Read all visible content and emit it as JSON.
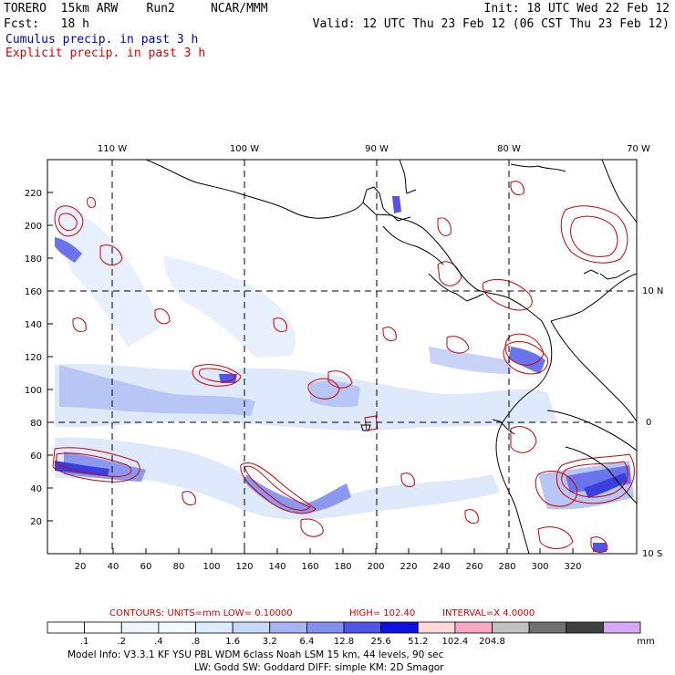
{
  "header": {
    "model": "TORERO  15km ARW    Run2     NCAR/MMM",
    "init": "Init: 18 UTC Wed 22 Feb 12",
    "fcst": "Fcst:   18 h",
    "valid": "Valid: 12 UTC Thu 23 Feb 12 (06 CST Thu 23 Feb 12)",
    "line1": "Cumulus precip. in past 3 h",
    "line2": "Explicit precip. in past 3 h"
  },
  "colors": {
    "cumulus_text": "#0000cc",
    "explicit_text": "#dd0000",
    "contour": "#cc0000"
  },
  "axes": {
    "top_lon_labels": [
      "110 W",
      "100 W",
      "90 W",
      "80 W",
      "70 W"
    ],
    "right_lat_labels": [
      "10 N",
      "0",
      "10 S"
    ],
    "y_ticks": [
      "20",
      "40",
      "60",
      "80",
      "100",
      "120",
      "140",
      "160",
      "180",
      "200",
      "220"
    ],
    "x_ticks": [
      "20",
      "40",
      "60",
      "80",
      "100",
      "120",
      "140",
      "160",
      "180",
      "200",
      "220",
      "240",
      "260",
      "280",
      "300",
      "320"
    ]
  },
  "contour_info": {
    "label": "CONTOURS:  UNITS=mm  LOW= 0.10000",
    "high": "HIGH=  102.40",
    "interval": "INTERVAL=X  4.0000"
  },
  "colorbar": {
    "colors": [
      "#ffffff",
      "#ffffff",
      "#eef6ff",
      "#eefcfc",
      "#dcecff",
      "#c8d8f8",
      "#a8b4f4",
      "#8490f0",
      "#5055e8",
      "#1010e0",
      "#fcd8d8",
      "#f8a8c4",
      "#c0c0c0",
      "#707070",
      "#404040",
      "#d8a8f8"
    ],
    "labels": [
      ".1",
      ".2",
      ".4",
      ".8",
      "1.6",
      "3.2",
      "6.4",
      "12.8",
      "25.6",
      "51.2",
      "102.4",
      "204.8"
    ],
    "units": "mm"
  },
  "footer": {
    "line1": "Model Info: V3.3.1   KF     YSU PBL  WDM 6class  Noah LSM  15 km,   44 levels,   90 sec",
    "line2": "LW: Godd SW: Goddard DIFF: simple KM: 2D Smagor"
  }
}
